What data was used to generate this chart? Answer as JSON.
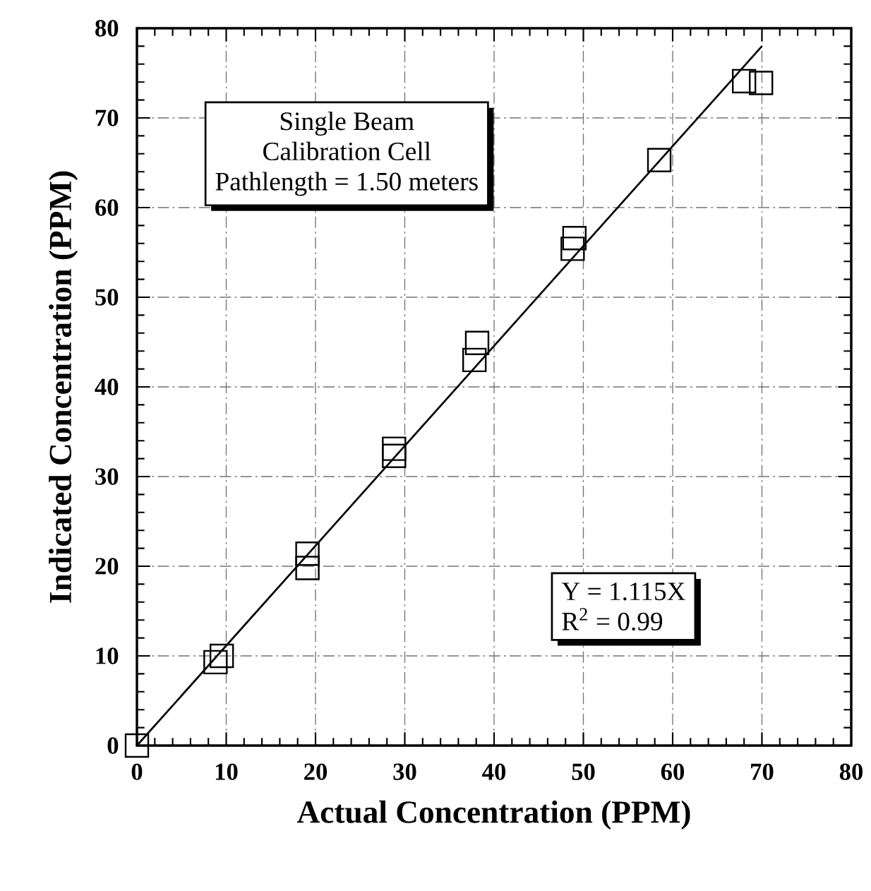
{
  "chart_data": {
    "type": "scatter",
    "xlabel": "Actual Concentration (PPM)",
    "ylabel": "Indicated Concentration (PPM)",
    "annotations": [
      "Single Beam",
      "Calibration Cell",
      "Pathlength = 1.50 meters",
      "Y = 1.115X",
      "R$^{2}$ = 0.99"
    ],
    "series": [
      {
        "color": "#000000",
        "x": [
          0,
          9.5,
          8.8,
          19.1,
          19.1,
          28.8,
          28.8,
          38.1,
          37.8,
          49.0,
          48.8,
          58.5,
          68.0,
          69.9
        ],
        "values": [
          0,
          10,
          9.3,
          21.4,
          19.8,
          33.1,
          32.3,
          44.9,
          43.0,
          56.6,
          55.4,
          65.3,
          74.1,
          73.9
        ]
      },
      {
        "type": "line",
        "color": "#000000",
        "x": [
          0,
          70
        ],
        "values": [
          0,
          78
        ],
        "marker": "none",
        "line_style": "solid"
      }
    ],
    "xlim": [
      0,
      80
    ],
    "ylim": [
      0,
      80
    ],
    "xticks": [
      0,
      10,
      20,
      30,
      40,
      50,
      60,
      70,
      80
    ],
    "yticks": [
      0,
      10,
      20,
      30,
      40,
      50,
      60,
      70,
      80
    ],
    "grid": true,
    "marker": "square"
  }
}
